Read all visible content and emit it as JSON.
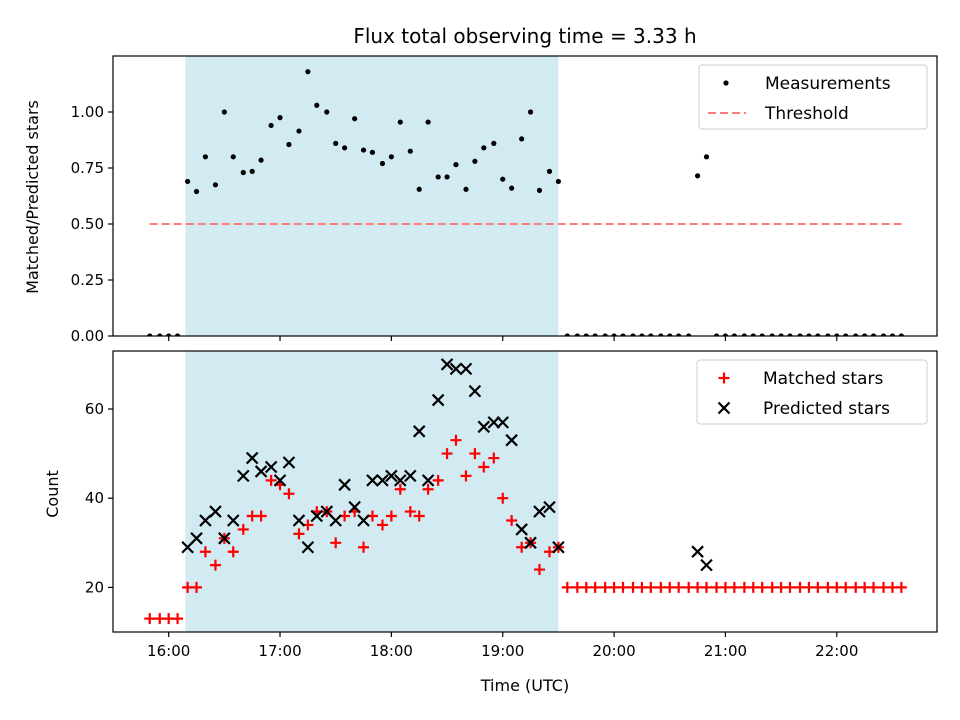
{
  "chart_data": {
    "type": "scatter",
    "title": "Flux total observing time = 3.33 h",
    "xlabel": "Time (UTC)",
    "x_tick_labels": [
      "16:00",
      "17:00",
      "18:00",
      "19:00",
      "20:00",
      "21:00",
      "22:00"
    ],
    "x_tick_values": [
      16,
      17,
      18,
      19,
      20,
      21,
      22
    ],
    "xlim": [
      15.5,
      22.9
    ],
    "shaded_region": {
      "x": [
        16.15,
        19.5
      ],
      "color": "#add8e6"
    },
    "panels": [
      {
        "ylabel": "Matched/Predicted stars",
        "ylim": [
          0,
          1.25
        ],
        "y_tick_labels": [
          "0.00",
          "0.25",
          "0.50",
          "0.75",
          "1.00"
        ],
        "y_tick_values": [
          0,
          0.25,
          0.5,
          0.75,
          1.0
        ],
        "legend_position": "upper-right",
        "series": [
          {
            "name": "Measurements",
            "marker": "dot",
            "color": "#000000",
            "points": [
              [
                15.83,
                0
              ],
              [
                15.92,
                0
              ],
              [
                16.0,
                0
              ],
              [
                16.08,
                0
              ],
              [
                16.17,
                0.69
              ],
              [
                16.25,
                0.645
              ],
              [
                16.33,
                0.8
              ],
              [
                16.42,
                0.675
              ],
              [
                16.5,
                1.0
              ],
              [
                16.58,
                0.8
              ],
              [
                16.67,
                0.73
              ],
              [
                16.75,
                0.735
              ],
              [
                16.83,
                0.785
              ],
              [
                16.92,
                0.94
              ],
              [
                17.0,
                0.975
              ],
              [
                17.08,
                0.855
              ],
              [
                17.17,
                0.915
              ],
              [
                17.25,
                1.18
              ],
              [
                17.33,
                1.03
              ],
              [
                17.42,
                1.0
              ],
              [
                17.5,
                0.86
              ],
              [
                17.58,
                0.84
              ],
              [
                17.67,
                0.97
              ],
              [
                17.75,
                0.83
              ],
              [
                17.83,
                0.82
              ],
              [
                17.92,
                0.77
              ],
              [
                18.0,
                0.8
              ],
              [
                18.08,
                0.955
              ],
              [
                18.17,
                0.825
              ],
              [
                18.25,
                0.655
              ],
              [
                18.33,
                0.955
              ],
              [
                18.42,
                0.71
              ],
              [
                18.5,
                0.71
              ],
              [
                18.58,
                0.765
              ],
              [
                18.67,
                0.655
              ],
              [
                18.75,
                0.78
              ],
              [
                18.83,
                0.84
              ],
              [
                18.92,
                0.86
              ],
              [
                19.0,
                0.7
              ],
              [
                19.08,
                0.66
              ],
              [
                19.17,
                0.88
              ],
              [
                19.25,
                1.0
              ],
              [
                19.33,
                0.65
              ],
              [
                19.42,
                0.735
              ],
              [
                19.5,
                0.69
              ],
              [
                19.58,
                0
              ],
              [
                19.67,
                0
              ],
              [
                19.75,
                0
              ],
              [
                19.83,
                0
              ],
              [
                19.92,
                0
              ],
              [
                20.0,
                0
              ],
              [
                20.08,
                0
              ],
              [
                20.17,
                0
              ],
              [
                20.25,
                0
              ],
              [
                20.33,
                0
              ],
              [
                20.42,
                0
              ],
              [
                20.5,
                0
              ],
              [
                20.58,
                0
              ],
              [
                20.67,
                0
              ],
              [
                20.75,
                0.715
              ],
              [
                20.83,
                0.8
              ],
              [
                20.92,
                0
              ],
              [
                21.0,
                0
              ],
              [
                21.08,
                0
              ],
              [
                21.17,
                0
              ],
              [
                21.25,
                0
              ],
              [
                21.33,
                0
              ],
              [
                21.42,
                0
              ],
              [
                21.5,
                0
              ],
              [
                21.58,
                0
              ],
              [
                21.67,
                0
              ],
              [
                21.75,
                0
              ],
              [
                21.83,
                0
              ],
              [
                21.92,
                0
              ],
              [
                22.0,
                0
              ],
              [
                22.08,
                0
              ],
              [
                22.17,
                0
              ],
              [
                22.25,
                0
              ],
              [
                22.33,
                0
              ],
              [
                22.42,
                0
              ],
              [
                22.5,
                0
              ],
              [
                22.58,
                0
              ]
            ]
          },
          {
            "name": "Threshold",
            "marker": "dashed-line",
            "color": "#ff7a7a",
            "points": [
              [
                15.83,
                0.5
              ],
              [
                22.58,
                0.5
              ]
            ]
          }
        ]
      },
      {
        "ylabel": "Count",
        "ylim": [
          10,
          73
        ],
        "y_tick_labels": [
          "20",
          "40",
          "60"
        ],
        "y_tick_values": [
          20,
          40,
          60
        ],
        "legend_position": "upper-right",
        "series": [
          {
            "name": "Matched stars",
            "marker": "plus",
            "color": "#ff0000",
            "points": [
              [
                15.83,
                13
              ],
              [
                15.92,
                13
              ],
              [
                16.0,
                13
              ],
              [
                16.08,
                13
              ],
              [
                16.17,
                20
              ],
              [
                16.25,
                20
              ],
              [
                16.33,
                28
              ],
              [
                16.42,
                25
              ],
              [
                16.5,
                31
              ],
              [
                16.58,
                28
              ],
              [
                16.67,
                33
              ],
              [
                16.75,
                36
              ],
              [
                16.83,
                36
              ],
              [
                16.92,
                44
              ],
              [
                17.0,
                43
              ],
              [
                17.08,
                41
              ],
              [
                17.17,
                32
              ],
              [
                17.25,
                34
              ],
              [
                17.33,
                37
              ],
              [
                17.42,
                37
              ],
              [
                17.5,
                30
              ],
              [
                17.58,
                36
              ],
              [
                17.67,
                37
              ],
              [
                17.75,
                29
              ],
              [
                17.83,
                36
              ],
              [
                17.92,
                34
              ],
              [
                18.0,
                36
              ],
              [
                18.08,
                42
              ],
              [
                18.17,
                37
              ],
              [
                18.25,
                36
              ],
              [
                18.33,
                42
              ],
              [
                18.42,
                44
              ],
              [
                18.5,
                50
              ],
              [
                18.58,
                53
              ],
              [
                18.67,
                45
              ],
              [
                18.75,
                50
              ],
              [
                18.83,
                47
              ],
              [
                18.92,
                49
              ],
              [
                19.0,
                40
              ],
              [
                19.08,
                35
              ],
              [
                19.17,
                29
              ],
              [
                19.25,
                30
              ],
              [
                19.33,
                24
              ],
              [
                19.42,
                28
              ],
              [
                19.5,
                29
              ],
              [
                19.58,
                20
              ],
              [
                19.67,
                20
              ],
              [
                19.75,
                20
              ],
              [
                19.83,
                20
              ],
              [
                19.92,
                20
              ],
              [
                20.0,
                20
              ],
              [
                20.08,
                20
              ],
              [
                20.17,
                20
              ],
              [
                20.25,
                20
              ],
              [
                20.33,
                20
              ],
              [
                20.42,
                20
              ],
              [
                20.5,
                20
              ],
              [
                20.58,
                20
              ],
              [
                20.67,
                20
              ],
              [
                20.75,
                20
              ],
              [
                20.83,
                20
              ],
              [
                20.92,
                20
              ],
              [
                21.0,
                20
              ],
              [
                21.08,
                20
              ],
              [
                21.17,
                20
              ],
              [
                21.25,
                20
              ],
              [
                21.33,
                20
              ],
              [
                21.42,
                20
              ],
              [
                21.5,
                20
              ],
              [
                21.58,
                20
              ],
              [
                21.67,
                20
              ],
              [
                21.75,
                20
              ],
              [
                21.83,
                20
              ],
              [
                21.92,
                20
              ],
              [
                22.0,
                20
              ],
              [
                22.08,
                20
              ],
              [
                22.17,
                20
              ],
              [
                22.25,
                20
              ],
              [
                22.33,
                20
              ],
              [
                22.42,
                20
              ],
              [
                22.5,
                20
              ],
              [
                22.58,
                20
              ]
            ]
          },
          {
            "name": "Predicted stars",
            "marker": "x",
            "color": "#000000",
            "points": [
              [
                16.17,
                29
              ],
              [
                16.25,
                31
              ],
              [
                16.33,
                35
              ],
              [
                16.42,
                37
              ],
              [
                16.5,
                31
              ],
              [
                16.58,
                35
              ],
              [
                16.67,
                45
              ],
              [
                16.75,
                49
              ],
              [
                16.83,
                46
              ],
              [
                16.92,
                47
              ],
              [
                17.0,
                44
              ],
              [
                17.08,
                48
              ],
              [
                17.17,
                35
              ],
              [
                17.25,
                29
              ],
              [
                17.33,
                36
              ],
              [
                17.42,
                37
              ],
              [
                17.5,
                35
              ],
              [
                17.58,
                43
              ],
              [
                17.67,
                38
              ],
              [
                17.75,
                35
              ],
              [
                17.83,
                44
              ],
              [
                17.92,
                44
              ],
              [
                18.0,
                45
              ],
              [
                18.08,
                44
              ],
              [
                18.17,
                45
              ],
              [
                18.25,
                55
              ],
              [
                18.33,
                44
              ],
              [
                18.42,
                62
              ],
              [
                18.5,
                70
              ],
              [
                18.58,
                69
              ],
              [
                18.67,
                69
              ],
              [
                18.75,
                64
              ],
              [
                18.83,
                56
              ],
              [
                18.92,
                57
              ],
              [
                19.0,
                57
              ],
              [
                19.08,
                53
              ],
              [
                19.17,
                33
              ],
              [
                19.25,
                30
              ],
              [
                19.33,
                37
              ],
              [
                19.42,
                38
              ],
              [
                19.5,
                29
              ],
              [
                20.75,
                28
              ],
              [
                20.83,
                25
              ]
            ]
          }
        ]
      }
    ]
  }
}
